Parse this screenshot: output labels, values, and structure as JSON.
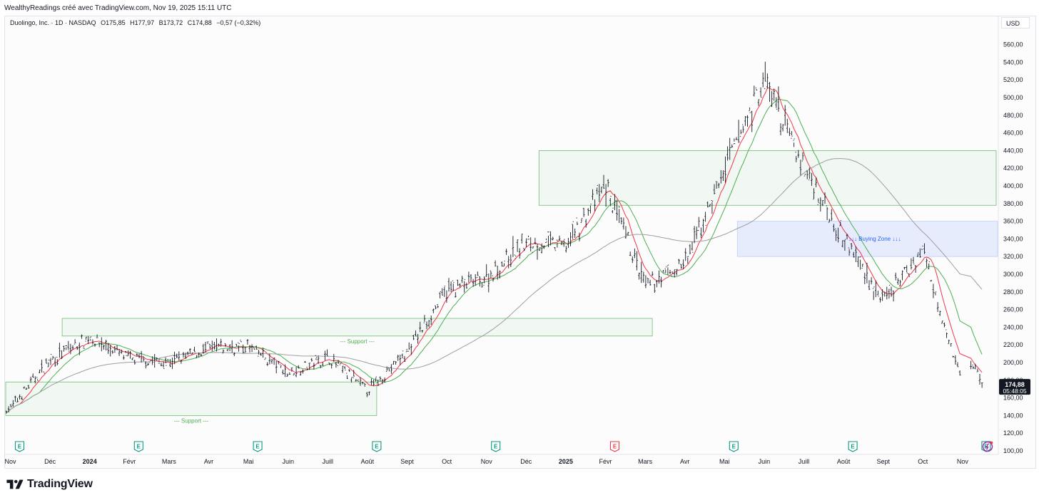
{
  "header": {
    "attribution": "WealthyReadings créé avec TradingView.com, Nov 19, 2025 15:11 UTC"
  },
  "legend": {
    "symbol": "Duolingo, Inc. · 1D · NASDAQ",
    "open": "O175,85",
    "high": "H177,97",
    "low": "B173,72",
    "close": "C174,88",
    "change": "−0,57 (−0,32%)"
  },
  "price_axis": {
    "currency": "USD",
    "current_price": "174,88",
    "countdown": "05:48:05"
  },
  "annotations": {
    "support_label": "--- Support ---",
    "buying_zone_label": "↓↓↓ Buying Zone ↓↓↓",
    "earnings_marker": "E"
  },
  "brand": {
    "name": "TradingView"
  },
  "colors": {
    "candle": "#131722",
    "ma_short": "#f23645",
    "ma_mid": "#4caf50",
    "ma_long": "#9e9e9e",
    "support_zone": "#4caf50",
    "buying_zone": "#2962ff",
    "earnings": "#089981",
    "earnings_upcoming": "#f23645",
    "price_tag": "#131722"
  },
  "chart_data": {
    "type": "line",
    "title": "Duolingo, Inc. · 1D · NASDAQ",
    "xlabel": "",
    "ylabel": "",
    "ylim": [
      100,
      570
    ],
    "y_ticks": [
      100,
      120,
      140,
      160,
      180,
      200,
      220,
      240,
      260,
      280,
      300,
      320,
      340,
      360,
      380,
      400,
      420,
      440,
      460,
      480,
      500,
      520,
      540,
      560
    ],
    "x_ticks": [
      "Nov",
      "Déc",
      "2024",
      "Févr",
      "Mars",
      "Avr",
      "Mai",
      "Juin",
      "Juill",
      "Août",
      "Sept",
      "Oct",
      "Nov",
      "Déc",
      "2025",
      "Févr",
      "Mars",
      "Avr",
      "Mai",
      "Juin",
      "Juill",
      "Août",
      "Sept",
      "Oct",
      "Nov"
    ],
    "grid": false,
    "x": [
      "2023-11",
      "2023-12",
      "2024-01",
      "2024-02",
      "2024-03",
      "2024-04",
      "2024-05",
      "2024-06",
      "2024-07",
      "2024-08",
      "2024-09",
      "2024-10",
      "2024-11",
      "2024-12",
      "2025-01",
      "2025-02",
      "2025-03",
      "2025-04",
      "2025-05",
      "2025-06",
      "2025-07",
      "2025-08",
      "2025-09",
      "2025-10",
      "2025-11"
    ],
    "series": [
      {
        "values": [
          148,
          203,
          228,
          204,
          200,
          216,
          218,
          188,
          206,
          168,
          212,
          282,
          296,
          336,
          332,
          400,
          286,
          312,
          418,
          520,
          420,
          342,
          268,
          328,
          174.88
        ]
      }
    ],
    "zones": [
      {
        "label": "--- Support ---",
        "y_range": [
          230,
          250
        ],
        "x_range": [
          "2023-12",
          "2025-03"
        ]
      },
      {
        "label": "--- Support ---",
        "y_range": [
          140,
          178
        ],
        "x_range": [
          "2023-11",
          "2024-08"
        ]
      },
      {
        "label": "",
        "y_range": [
          378,
          440
        ],
        "x_range": [
          "2024-12",
          "2025-11"
        ]
      },
      {
        "label": "↓↓↓ Buying Zone ↓↓↓",
        "y_range": [
          320,
          360
        ],
        "x_range": [
          "2025-05",
          "2025-11"
        ]
      }
    ],
    "events": [
      "2023-11",
      "2024-02",
      "2024-05",
      "2024-08",
      "2024-11",
      "2025-02",
      "2025-05",
      "2025-08",
      "2025-11"
    ]
  }
}
